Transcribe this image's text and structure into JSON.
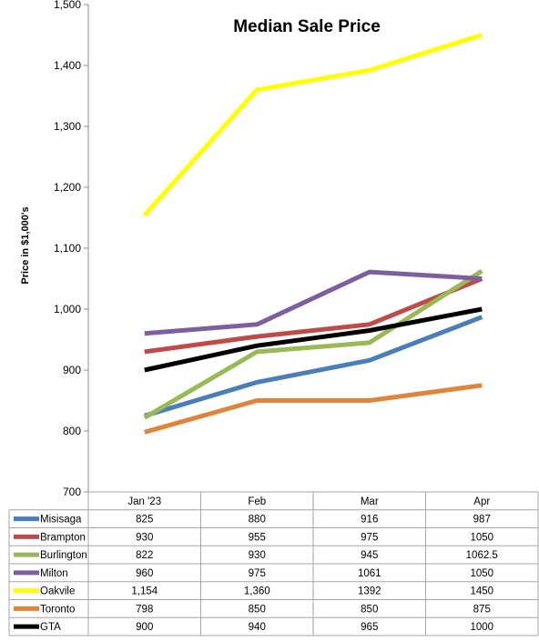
{
  "chart_data": {
    "type": "line",
    "title": "Median Sale Price",
    "ylabel": "Price in $1,000's",
    "xlabel": "",
    "categories": [
      "Jan '23",
      "Feb",
      "Mar",
      "Apr"
    ],
    "ylim": [
      700,
      1500
    ],
    "yticks": [
      "700",
      "800",
      "900",
      "1,000",
      "1,100",
      "1,200",
      "1,300",
      "1,400",
      "1,500"
    ],
    "grid": false,
    "legend": "data-table",
    "series": [
      {
        "name": "Misisaga",
        "color": "#4a7ebb",
        "values": [
          825,
          880,
          916,
          987
        ],
        "labels": [
          "825",
          "880",
          "916",
          "987"
        ]
      },
      {
        "name": "Brampton",
        "color": "#be4b48",
        "values": [
          930,
          955,
          975,
          1050
        ],
        "labels": [
          "930",
          "955",
          "975",
          "1050"
        ]
      },
      {
        "name": "Burlington",
        "color": "#98b954",
        "values": [
          822,
          930,
          945,
          1062.5
        ],
        "labels": [
          "822",
          "930",
          "945",
          "1062.5"
        ]
      },
      {
        "name": "Milton",
        "color": "#7d5fa0",
        "values": [
          960,
          975,
          1061,
          1050
        ],
        "labels": [
          "960",
          "975",
          "1061",
          "1050"
        ]
      },
      {
        "name": "Oakvile",
        "color": "#ffff00",
        "values": [
          1154,
          1360,
          1392,
          1450
        ],
        "labels": [
          "1,154",
          "1,360",
          "1392",
          "1450"
        ]
      },
      {
        "name": "Toronto",
        "color": "#e0843c",
        "values": [
          798,
          850,
          850,
          875
        ],
        "labels": [
          "798",
          "850",
          "850",
          "875"
        ]
      },
      {
        "name": "GTA",
        "color": "#000000",
        "values": [
          900,
          940,
          965,
          1000
        ],
        "labels": [
          "900",
          "940",
          "965",
          "1000"
        ]
      }
    ]
  }
}
